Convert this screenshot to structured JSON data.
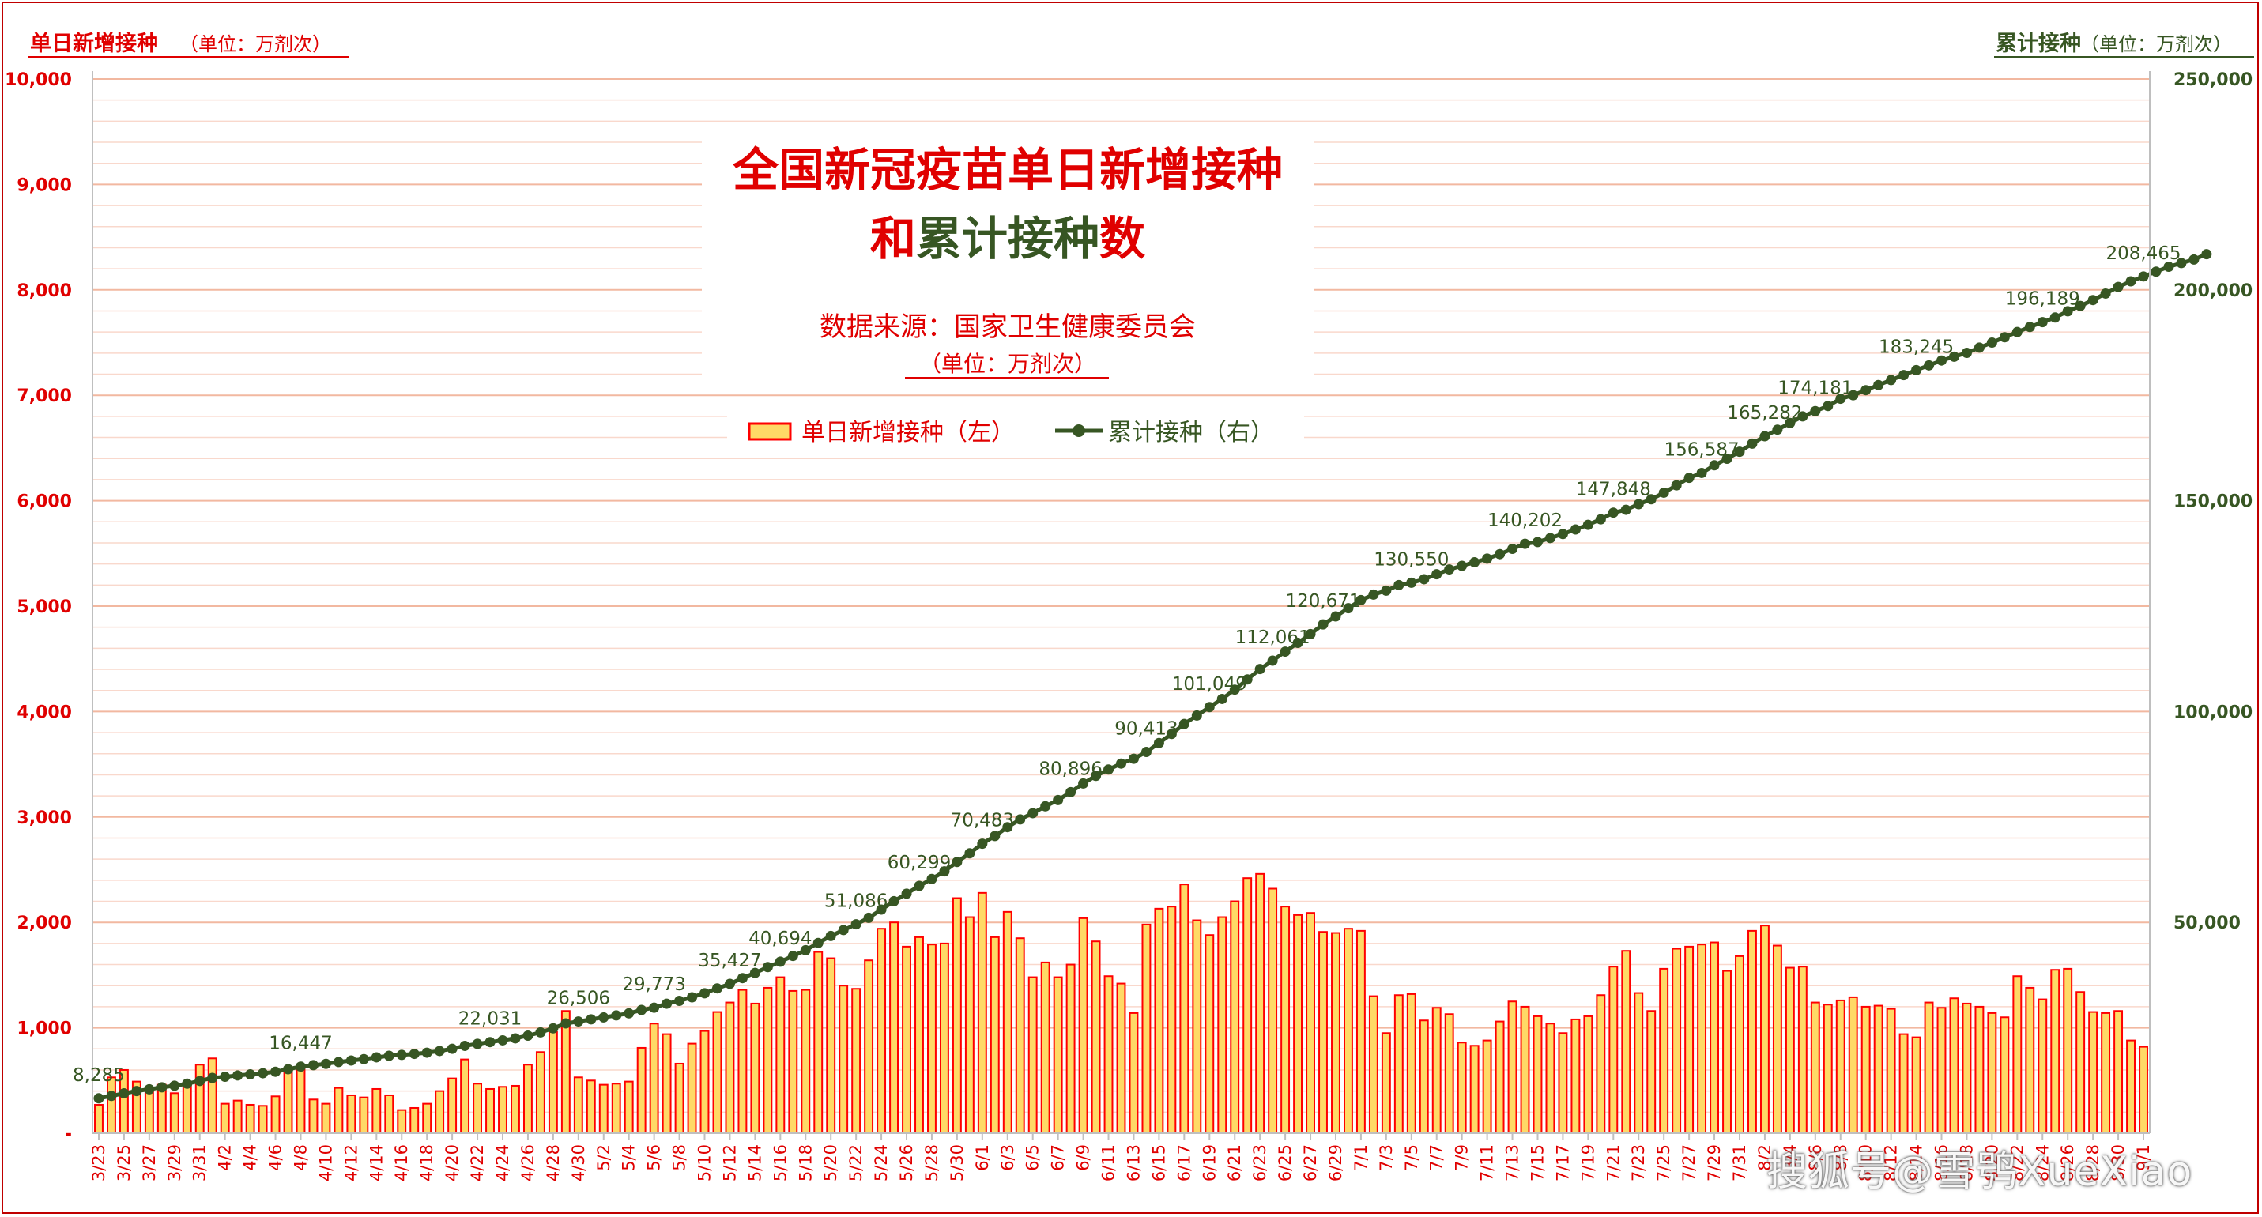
{
  "watermark": "搜狐号@雪鸮XueXiao",
  "legend": {
    "bar_label": "单日新增接种（左）",
    "line_label": "累计接种（右）"
  },
  "colors": {
    "bar_fill": "#ffd966",
    "bar_stroke": "#ff0000",
    "line": "#375623",
    "left_axis": "#e00000",
    "right_axis": "#375623",
    "title_red": "#e00000",
    "title_green": "#375623"
  },
  "chart_data": {
    "type": "bar+line",
    "title_line1": "全国新冠疫苗单日新增接种",
    "title_line2_part1": "和",
    "title_line2_part2": "累计接种",
    "title_line2_part3": "数",
    "source": "数据来源：国家卫生健康委员会",
    "unit_note": "（单位：万剂次）",
    "left_axis_title": "单日新增接种",
    "left_axis_unit": "（单位：万剂次）",
    "right_axis_title": "累计接种",
    "right_axis_unit": "（单位：万剂次）",
    "left_ylim": [
      0,
      10000
    ],
    "right_ylim": [
      0,
      250000
    ],
    "left_ticks": [
      "-",
      "1,000",
      "2,000",
      "3,000",
      "4,000",
      "5,000",
      "6,000",
      "7,000",
      "8,000",
      "9,000",
      "10,000"
    ],
    "right_ticks": [
      "50,000",
      "100,000",
      "150,000",
      "200,000",
      "250,000"
    ],
    "start_date": "3/23",
    "x_tick_labels": [
      "3/23",
      "3/25",
      "3/27",
      "3/29",
      "3/31",
      "4/2",
      "4/4",
      "4/6",
      "4/8",
      "4/10",
      "4/12",
      "4/14",
      "4/16",
      "4/18",
      "4/20",
      "4/22",
      "4/24",
      "4/26",
      "4/28",
      "4/30",
      "5/2",
      "5/4",
      "5/6",
      "5/8",
      "5/10",
      "5/12",
      "5/14",
      "5/16",
      "5/18",
      "5/20",
      "5/22",
      "5/24",
      "5/26",
      "5/28",
      "5/30",
      "6/1",
      "6/3",
      "6/5",
      "6/7",
      "6/9",
      "6/11",
      "6/13",
      "6/15",
      "6/17",
      "6/19",
      "6/21",
      "6/23",
      "6/25",
      "6/27",
      "6/29",
      "7/1",
      "7/3",
      "7/5",
      "7/7",
      "7/9",
      "7/11",
      "7/13",
      "7/15",
      "7/17",
      "7/19",
      "7/21",
      "7/23",
      "7/25",
      "7/27",
      "7/29",
      "7/31",
      "8/2",
      "8/4",
      "8/6",
      "8/8",
      "8/10",
      "8/12",
      "8/14",
      "8/16",
      "8/18",
      "8/20",
      "8/22",
      "8/24",
      "8/26",
      "8/28",
      "8/30",
      "9/1"
    ],
    "daily": [
      270,
      530,
      600,
      490,
      430,
      460,
      380,
      480,
      650,
      710,
      280,
      310,
      270,
      260,
      350,
      600,
      630,
      320,
      280,
      430,
      360,
      340,
      420,
      360,
      220,
      240,
      280,
      400,
      520,
      700,
      470,
      420,
      440,
      450,
      650,
      770,
      960,
      1160,
      530,
      500,
      460,
      470,
      490,
      810,
      1040,
      940,
      660,
      850,
      970,
      1150,
      1240,
      1360,
      1230,
      1380,
      1480,
      1350,
      1360,
      1720,
      1660,
      1400,
      1370,
      1640,
      1940,
      2000,
      1770,
      1860,
      1790,
      1800,
      2230,
      2050,
      2280,
      1860,
      2100,
      1850,
      1480,
      1620,
      1480,
      1600,
      2040,
      1820,
      1490,
      1420,
      1140,
      1980,
      2130,
      2150,
      2360,
      2020,
      1880,
      2050,
      2200,
      2420,
      2460,
      2320,
      2150,
      2070,
      2090,
      1910,
      1900,
      1940,
      1920,
      1300,
      950,
      1310,
      1320,
      1070,
      1190,
      1130,
      860,
      830,
      880,
      1060,
      1250,
      1200,
      1110,
      1040,
      950,
      1080,
      1110,
      1310,
      1580,
      1730,
      1330,
      1160,
      1560,
      1750,
      1770,
      1790,
      1810,
      1540,
      1680,
      1920,
      1970,
      1780,
      1570,
      1580,
      1240,
      1220,
      1260,
      1290,
      1200,
      1210,
      1180,
      940,
      910,
      1240,
      1190,
      1280,
      1230,
      1200,
      1140,
      1100,
      1490,
      1380,
      1270,
      1550,
      1560,
      1340,
      1150,
      1140,
      1160,
      880,
      820
    ],
    "cumulative": [
      8285,
      8840,
      9470,
      10000,
      10430,
      10890,
      11270,
      11750,
      12400,
      13110,
      13390,
      13700,
      13970,
      14230,
      14580,
      15180,
      15800,
      16130,
      16447,
      16880,
      17240,
      17580,
      18000,
      18360,
      18580,
      18820,
      19100,
      19500,
      20020,
      20720,
      21190,
      21610,
      22031,
      22500,
      23150,
      23920,
      24880,
      26040,
      26506,
      27010,
      27470,
      27940,
      28430,
      29240,
      29773,
      30720,
      31380,
      32230,
      33200,
      34350,
      35427,
      36790,
      38020,
      39400,
      40694,
      42040,
      43400,
      45120,
      46780,
      48180,
      49550,
      51086,
      53030,
      55030,
      56800,
      58660,
      60299,
      62100,
      64330,
      66380,
      68660,
      70483,
      72580,
      74430,
      75910,
      77530,
      79010,
      80896,
      82940,
      84760,
      86250,
      87670,
      88810,
      90413,
      92540,
      94690,
      97050,
      99070,
      101049,
      102990,
      105190,
      107610,
      110070,
      112061,
      114210,
      116280,
      118370,
      120671,
      122570,
      124510,
      126430,
      127730,
      128680,
      129990,
      130550,
      131380,
      132570,
      133700,
      134560,
      135390,
      136270,
      137330,
      138580,
      139780,
      140202,
      141140,
      142090,
      143170,
      144280,
      145590,
      147170,
      147848,
      149180,
      150340,
      151900,
      153650,
      155420,
      156587,
      158400,
      159940,
      161620,
      163540,
      165282,
      166850,
      168420,
      170000,
      171240,
      172460,
      174181,
      175020,
      176220,
      177430,
      178610,
      179790,
      180970,
      182100,
      183245,
      184150,
      185060,
      186300,
      187490,
      188770,
      190000,
      191200,
      192340,
      193440,
      194930,
      196189,
      197580,
      199130,
      200690,
      202030,
      203180,
      204320,
      205480,
      206360,
      207200,
      208465
    ],
    "labeled_points": [
      {
        "date": "3/23",
        "value": "8,285"
      },
      {
        "date": "4/8",
        "value": "16,447"
      },
      {
        "date": "4/23",
        "value": "22,031"
      },
      {
        "date": "4/30",
        "value": "26,506"
      },
      {
        "date": "5/6",
        "value": "29,773"
      },
      {
        "date": "5/12",
        "value": "35,427"
      },
      {
        "date": "5/16",
        "value": "40,694"
      },
      {
        "date": "5/22",
        "value": "51,086"
      },
      {
        "date": "5/27",
        "value": "60,299"
      },
      {
        "date": "6/1",
        "value": "70,483"
      },
      {
        "date": "6/8",
        "value": "80,896"
      },
      {
        "date": "6/14",
        "value": "90,413"
      },
      {
        "date": "6/19",
        "value": "101,049"
      },
      {
        "date": "6/24",
        "value": "112,061"
      },
      {
        "date": "6/28",
        "value": "120,671"
      },
      {
        "date": "7/5",
        "value": "130,550"
      },
      {
        "date": "7/14",
        "value": "140,202"
      },
      {
        "date": "7/21",
        "value": "147,848"
      },
      {
        "date": "7/28",
        "value": "156,587"
      },
      {
        "date": "8/2",
        "value": "165,282"
      },
      {
        "date": "8/6",
        "value": "174,181"
      },
      {
        "date": "8/14",
        "value": "183,245"
      },
      {
        "date": "8/24",
        "value": "196,189"
      },
      {
        "date": "9/1",
        "value": "208,465"
      }
    ],
    "grid": true,
    "legend_position": "top-center"
  }
}
